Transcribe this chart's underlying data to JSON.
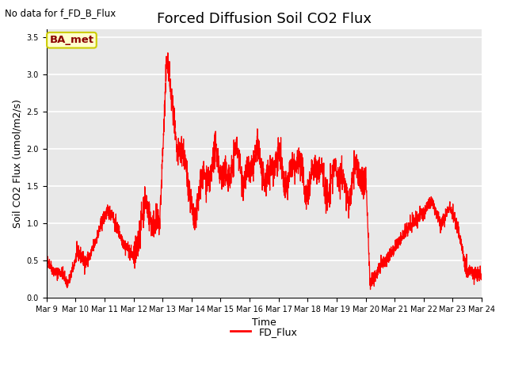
{
  "title": "Forced Diffusion Soil CO2 Flux",
  "ylabel": "Soil CO2 Flux (umol/m2/s)",
  "xlabel": "Time",
  "top_left_text": "No data for f_FD_B_Flux",
  "legend_label": "FD_Flux",
  "line_color": "red",
  "box_label": "BA_met",
  "box_facecolor": "#ffffcc",
  "box_edgecolor": "#cccc00",
  "background_color": "#e8e8e8",
  "ylim": [
    0.0,
    3.6
  ],
  "yticks": [
    0.0,
    0.5,
    1.0,
    1.5,
    2.0,
    2.5,
    3.0,
    3.5
  ],
  "xlim": [
    9,
    24
  ],
  "x_tick_days": [
    9,
    10,
    11,
    12,
    13,
    14,
    15,
    16,
    17,
    18,
    19,
    20,
    21,
    22,
    23,
    24
  ],
  "x_tick_labels": [
    "Mar 9",
    "Mar 10",
    "Mar 11",
    "Mar 12",
    "Mar 13",
    "Mar 14",
    "Mar 15",
    "Mar 16",
    "Mar 17",
    "Mar 18",
    "Mar 19",
    "Mar 20",
    "Mar 21",
    "Mar 22",
    "Mar 23",
    "Mar 24"
  ],
  "figsize": [
    6.4,
    4.8
  ],
  "dpi": 100,
  "title_fontsize": 13,
  "axis_fontsize": 9,
  "tick_fontsize": 7
}
